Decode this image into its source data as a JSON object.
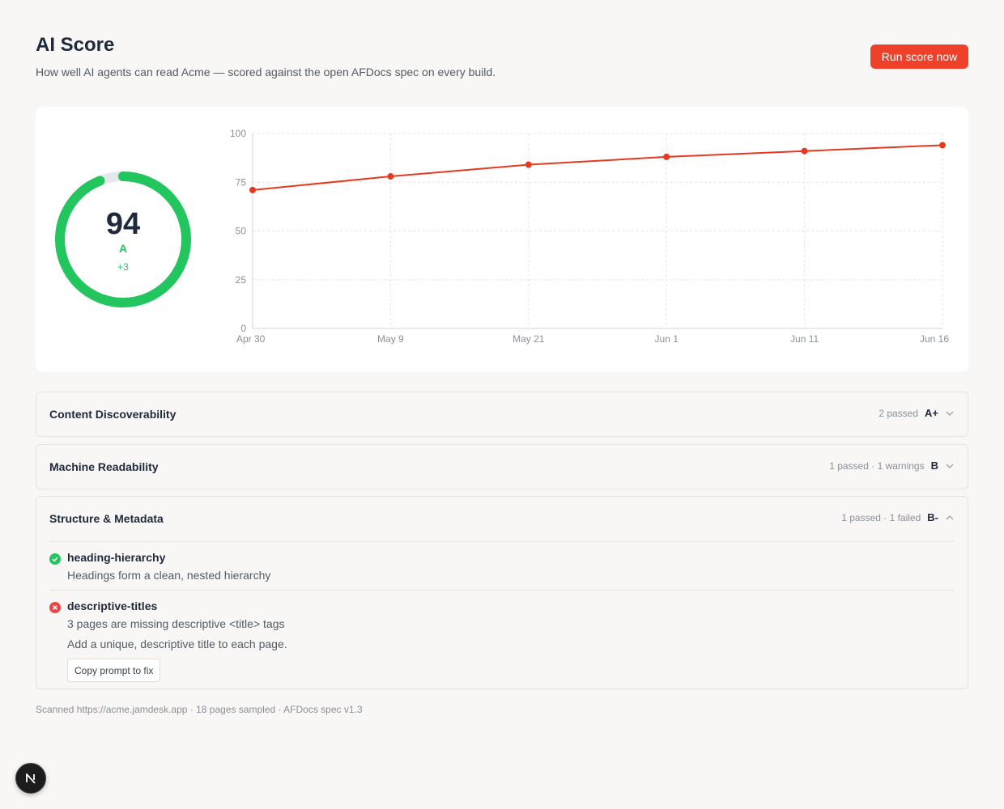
{
  "header": {
    "title": "AI Score",
    "subtitle": "How well AI agents can read Acme — scored against the open AFDocs spec on every build.",
    "run_button": "Run score now"
  },
  "score": {
    "value": "94",
    "grade": "A",
    "delta": "+3",
    "fraction": 0.94,
    "ring_color": "#22c55e"
  },
  "chart_data": {
    "type": "line",
    "categories": [
      "Apr 30",
      "May 9",
      "May 21",
      "Jun 1",
      "Jun 11",
      "Jun 16"
    ],
    "series": [
      {
        "values": [
          71,
          78,
          84,
          88,
          91,
          94
        ]
      }
    ],
    "ylim": [
      0,
      100
    ],
    "yticks": [
      "0",
      "25",
      "50",
      "75",
      "100"
    ],
    "grid": true,
    "color": "#e53920"
  },
  "sections": [
    {
      "title": "Content Discoverability",
      "status": "2 passed",
      "grade": "A+",
      "expanded": false
    },
    {
      "title": "Machine Readability",
      "status": "1 passed · 1 warnings",
      "grade": "B",
      "expanded": false
    },
    {
      "title": "Structure & Metadata",
      "status": "1 passed · 1 failed",
      "grade": "B-",
      "expanded": true,
      "checks": [
        {
          "name": "heading-hierarchy",
          "result": "passed",
          "description": "Headings form a clean, nested hierarchy"
        },
        {
          "name": "descriptive-titles",
          "result": "failed",
          "description": "3 pages are missing descriptive <title> tags",
          "fix": "Add a unique, descriptive title to each page.",
          "action": "Copy prompt to fix"
        }
      ]
    }
  ],
  "footer": "Scanned https://acme.jamdesk.app · 18 pages sampled · AFDocs spec v1.3",
  "badge": {
    "letter": "N"
  },
  "colors": {
    "accent": "#ef4129",
    "pass": "#22c55e",
    "fail": "#ef4444"
  }
}
